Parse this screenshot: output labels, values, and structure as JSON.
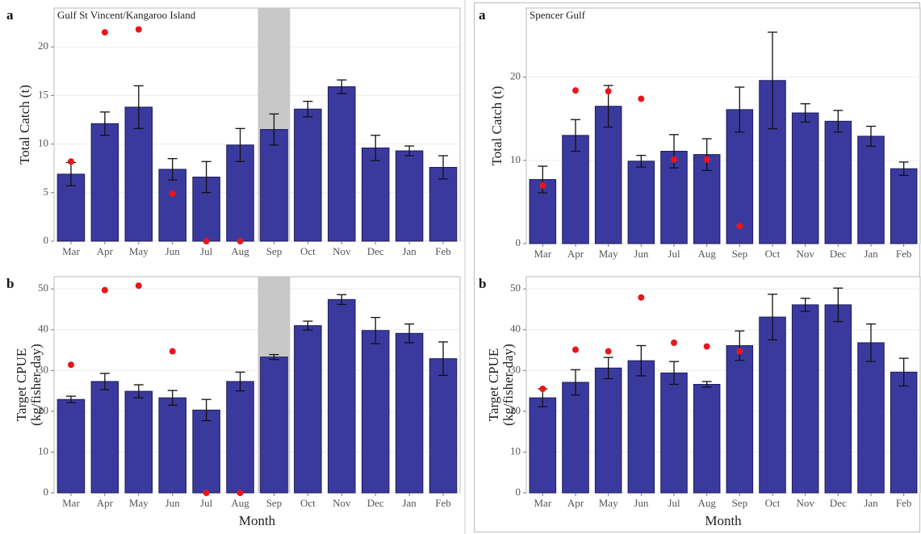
{
  "chart_data": [
    {
      "type": "bar",
      "label": "a",
      "title": "Gulf St Vincent/Kangaroo Island",
      "ylabel": [
        "Total Catch (t)"
      ],
      "categories": [
        "Mar",
        "Apr",
        "May",
        "Jun",
        "Jul",
        "Aug",
        "Sep",
        "Oct",
        "Nov",
        "Dec",
        "Jan",
        "Feb"
      ],
      "values": [
        6.9,
        12.1,
        13.8,
        7.4,
        6.6,
        9.9,
        11.5,
        13.6,
        15.9,
        9.6,
        9.3,
        7.6
      ],
      "errors": [
        1.2,
        1.2,
        2.2,
        1.1,
        1.6,
        1.7,
        1.6,
        0.8,
        0.7,
        1.3,
        0.5,
        1.2
      ],
      "points": [
        8.2,
        21.5,
        21.8,
        4.9,
        0,
        0,
        null,
        null,
        null,
        null,
        null,
        null
      ],
      "color": "#3a3a9e",
      "point_color": "#e8161b",
      "highlight": "Sep",
      "ylim": [
        0,
        24
      ],
      "yticks": [
        0,
        5,
        10,
        15,
        20
      ],
      "grid": true
    },
    {
      "type": "bar",
      "label": "b",
      "ylabel": [
        "Target CPUE",
        "(kg/fisher-day)"
      ],
      "xlabel": "Month",
      "categories": [
        "Mar",
        "Apr",
        "May",
        "Jun",
        "Jul",
        "Aug",
        "Sep",
        "Oct",
        "Nov",
        "Dec",
        "Jan",
        "Feb"
      ],
      "values": [
        22.9,
        27.3,
        24.9,
        23.3,
        20.3,
        27.3,
        33.3,
        41.0,
        47.4,
        39.8,
        39.1,
        32.9
      ],
      "errors": [
        0.8,
        2.0,
        1.6,
        1.8,
        2.6,
        2.3,
        0.6,
        1.1,
        1.2,
        3.2,
        2.3,
        4.1
      ],
      "points": [
        31.4,
        49.7,
        50.8,
        34.7,
        0,
        0,
        null,
        null,
        null,
        null,
        null,
        null
      ],
      "color": "#3a3a9e",
      "point_color": "#e8161b",
      "highlight": "Sep",
      "ylim": [
        0,
        53
      ],
      "yticks": [
        0,
        10,
        20,
        30,
        40,
        50
      ],
      "grid": true
    },
    {
      "type": "bar",
      "label": "a",
      "title": "Spencer Gulf",
      "ylabel": [
        "Total Catch (t)"
      ],
      "categories": [
        "Mar",
        "Apr",
        "May",
        "Jun",
        "Jul",
        "Aug",
        "Sep",
        "Oct",
        "Nov",
        "Dec",
        "Jan",
        "Feb"
      ],
      "values": [
        7.7,
        13.0,
        16.5,
        9.9,
        11.1,
        10.7,
        16.1,
        19.6,
        15.7,
        14.7,
        12.9,
        9.0
      ],
      "errors": [
        1.6,
        1.9,
        2.5,
        0.7,
        2.0,
        1.9,
        2.7,
        5.8,
        1.1,
        1.3,
        1.2,
        0.8
      ],
      "points": [
        7.0,
        18.4,
        18.3,
        17.4,
        10.1,
        10.1,
        2.1,
        null,
        null,
        null,
        null,
        null
      ],
      "color": "#3a3a9e",
      "point_color": "#e8161b",
      "ylim": [
        0,
        28.3
      ],
      "yticks": [
        0,
        10,
        20
      ],
      "grid": true
    },
    {
      "type": "bar",
      "label": "b",
      "ylabel": [
        "Target CPUE",
        "(kg/fisher-day)"
      ],
      "xlabel": "Month",
      "categories": [
        "Mar",
        "Apr",
        "May",
        "Jun",
        "Jul",
        "Aug",
        "Sep",
        "Oct",
        "Nov",
        "Dec",
        "Jan",
        "Feb"
      ],
      "values": [
        23.3,
        27.1,
        30.6,
        32.4,
        29.4,
        26.6,
        36.1,
        43.1,
        46.1,
        46.1,
        36.8,
        29.6
      ],
      "errors": [
        2.2,
        3.1,
        2.6,
        3.7,
        2.8,
        0.7,
        3.6,
        5.6,
        1.6,
        4.1,
        4.6,
        3.4
      ],
      "points": [
        25.5,
        35.1,
        34.7,
        47.9,
        36.8,
        35.9,
        34.7,
        null,
        null,
        null,
        null,
        null
      ],
      "color": "#3a3a9e",
      "point_color": "#e8161b",
      "ylim": [
        0,
        53
      ],
      "yticks": [
        0,
        10,
        20,
        30,
        40,
        50
      ],
      "grid": true
    }
  ]
}
